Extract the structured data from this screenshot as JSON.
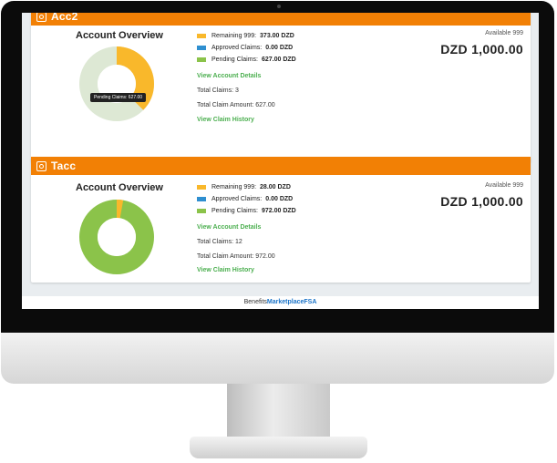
{
  "accounts": [
    {
      "name": "Acc2",
      "overview_title": "Account Overview",
      "legend": [
        {
          "label": "Remaining 999:",
          "value": "373.00 DZD",
          "color": "#f9b82b",
          "fraction": 0.373
        },
        {
          "label": "Approved Claims:",
          "value": "0.00 DZD",
          "color": "#2f8fd0",
          "fraction": 0.0
        },
        {
          "label": "Pending Claims:",
          "value": "627.00 DZD",
          "color": "#8bc34a",
          "fraction": 0.627
        }
      ],
      "view_details": "View Account Details",
      "total_claims": "Total Claims: 3",
      "total_amount": "Total Claim Amount: 627.00",
      "view_history": "View Claim History",
      "available_label": "Available 999",
      "available_value": "DZD  1,000.00",
      "tooltip": "Pending Claims: 627.00"
    },
    {
      "name": "Tacc",
      "overview_title": "Account Overview",
      "legend": [
        {
          "label": "Remaining 999:",
          "value": "28.00 DZD",
          "color": "#f9b82b",
          "fraction": 0.028
        },
        {
          "label": "Approved Claims:",
          "value": "0.00 DZD",
          "color": "#2f8fd0",
          "fraction": 0.0
        },
        {
          "label": "Pending Claims:",
          "value": "972.00 DZD",
          "color": "#8bc34a",
          "fraction": 0.972
        }
      ],
      "view_details": "View Account Details",
      "total_claims": "Total Claims: 12",
      "total_amount": "Total Claim Amount: 972.00",
      "view_history": "View Claim History",
      "available_label": "Available 999",
      "available_value": "DZD  1,000.00"
    }
  ],
  "footer": {
    "brand_prefix": "Benefits",
    "brand_highlight": "Marketplace",
    "brand_suffix": "FSA"
  }
}
